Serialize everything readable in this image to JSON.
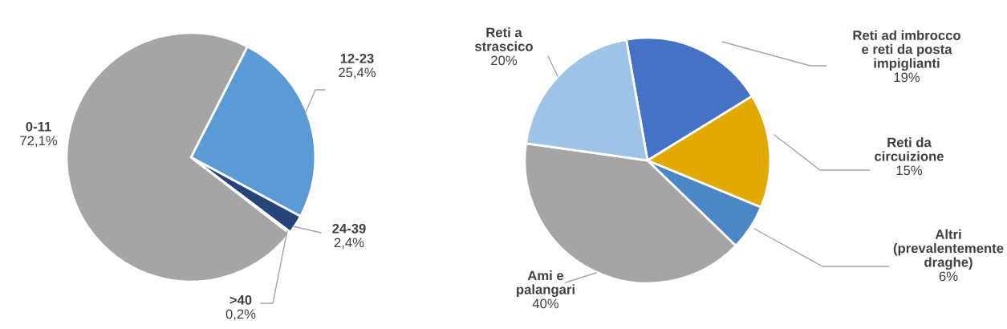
{
  "chart_data": [
    {
      "type": "pie",
      "categories": [
        "12-23",
        "24-39",
        ">40",
        "0-11"
      ],
      "values": [
        25.4,
        2.4,
        0.2,
        72.1
      ],
      "value_labels": [
        "25,4%",
        "2,4%",
        "0,2%",
        "72,1%"
      ],
      "colors": [
        "#5b9bd5",
        "#264478",
        "#9e480e",
        "#a5a5a5"
      ]
    },
    {
      "type": "pie",
      "categories": [
        "Reti ad imbrocco\ne reti da posta\nimpiglianti",
        "Reti da\ncircuizione",
        "Altri\n(prevalentemente\ndraghe)",
        "Ami e\npalangari",
        "Reti a\nstrascico"
      ],
      "values": [
        19,
        15,
        6,
        40,
        20
      ],
      "value_labels": [
        "19%",
        "15%",
        "6%",
        "40%",
        "20%"
      ],
      "colors": [
        "#4472c4",
        "#e2aa00",
        "#4a87c4",
        "#a5a5a5",
        "#9dc3e6"
      ]
    }
  ]
}
